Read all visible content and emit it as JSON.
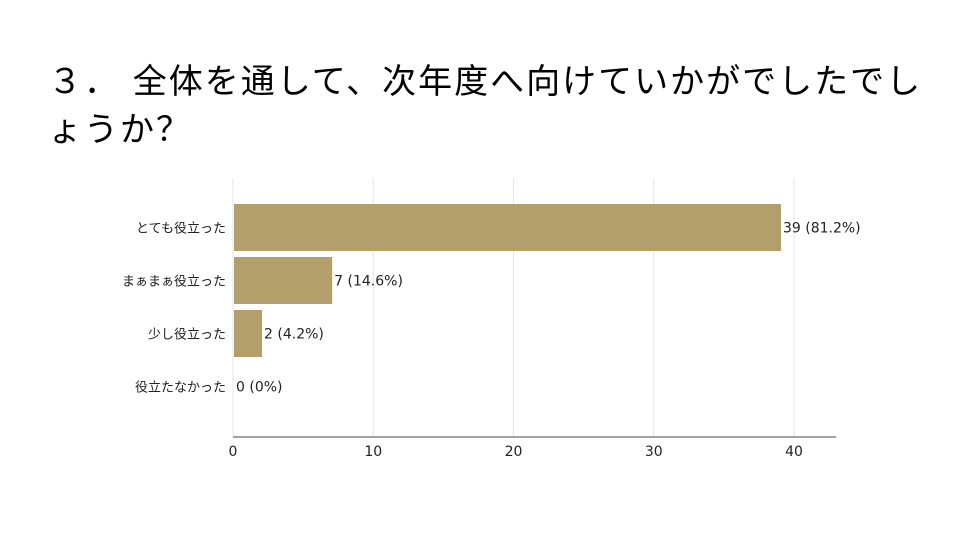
{
  "chart_data": {
    "type": "bar",
    "orientation": "horizontal",
    "title": "３． 全体を通して、次年度へ向けていかがでしたでしょうか？",
    "categories": [
      "とても役立った",
      "まぁまぁ役立った",
      "少し役立った",
      "役立たなかった"
    ],
    "values": [
      39,
      7,
      2,
      0
    ],
    "data_labels": [
      "39 (81.2%)",
      "7 (14.6%)",
      "2 (4.2%)",
      "0 (0%)"
    ],
    "xticks": [
      "0",
      "10",
      "20",
      "30",
      "40"
    ],
    "xtick_values": [
      0,
      10,
      20,
      30,
      40
    ],
    "xlim": [
      0,
      43
    ],
    "xlabel": "",
    "ylabel": "",
    "grid": true,
    "bar_color": "#b29f6b"
  }
}
